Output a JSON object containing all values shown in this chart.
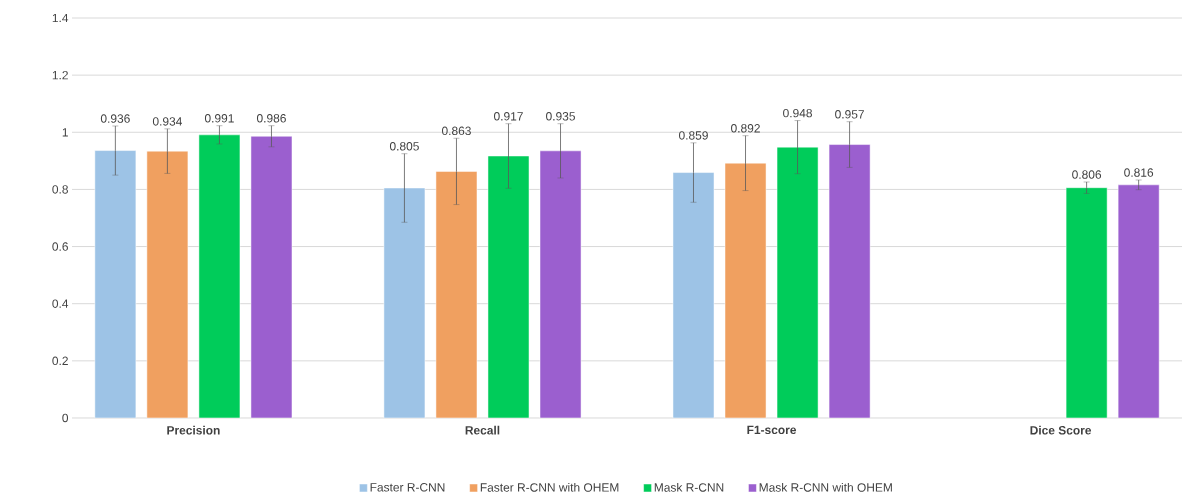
{
  "chart_data": {
    "type": "bar",
    "categories": [
      "Precision",
      "Recall",
      "F1-score",
      "Dice Score"
    ],
    "series": [
      {
        "name": "Faster R-CNN",
        "color": "#9dc3e6",
        "values": [
          0.936,
          0.805,
          0.859,
          null
        ],
        "errors": [
          0.086,
          0.12,
          0.104,
          null
        ]
      },
      {
        "name": "Faster R-CNN with OHEM",
        "color": "#f0a060",
        "values": [
          0.934,
          0.863,
          0.892,
          null
        ],
        "errors": [
          0.078,
          0.116,
          0.096,
          null
        ]
      },
      {
        "name": "Mask R-CNN",
        "color": "#00cc5a",
        "values": [
          0.991,
          0.917,
          0.948,
          0.806
        ],
        "errors": [
          0.032,
          0.113,
          0.093,
          0.02
        ]
      },
      {
        "name": "Mask R-CNN with OHEM",
        "color": "#9b5fcf",
        "values": [
          0.986,
          0.935,
          0.957,
          0.816
        ],
        "errors": [
          0.037,
          0.095,
          0.08,
          0.017
        ]
      }
    ],
    "ylim": [
      0,
      1.4
    ],
    "yticks": [
      0,
      0.2,
      0.4,
      0.6,
      0.8,
      1,
      1.2,
      1.4
    ],
    "grid": "y",
    "legend": "bottom",
    "data_labels": true
  }
}
